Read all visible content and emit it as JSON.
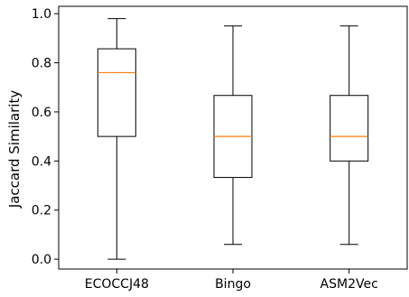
{
  "chart_data": {
    "type": "boxplot",
    "title": "",
    "xlabel": "",
    "ylabel": "Jaccard Similarity",
    "ylim": [
      -0.04,
      1.03
    ],
    "yticks": [
      0.0,
      0.2,
      0.4,
      0.6,
      0.8,
      1.0
    ],
    "ytick_labels": [
      "0.0",
      "0.2",
      "0.4",
      "0.6",
      "0.8",
      "1.0"
    ],
    "grid": false,
    "legend": "none",
    "categories": [
      "ECOCCJ48",
      "Bingo",
      "ASM2Vec"
    ],
    "boxes": [
      {
        "name": "ECOCCJ48",
        "whisker_low": 0.0,
        "q1": 0.5,
        "median": 0.76,
        "q3": 0.857,
        "whisker_high": 0.98
      },
      {
        "name": "Bingo",
        "whisker_low": 0.06,
        "q1": 0.333,
        "median": 0.5,
        "q3": 0.667,
        "whisker_high": 0.95
      },
      {
        "name": "ASM2Vec",
        "whisker_low": 0.06,
        "q1": 0.4,
        "median": 0.5,
        "q3": 0.667,
        "whisker_high": 0.95
      }
    ],
    "colors": {
      "box": "#000000",
      "median": "#ff7f0e",
      "axis": "#000000"
    }
  }
}
